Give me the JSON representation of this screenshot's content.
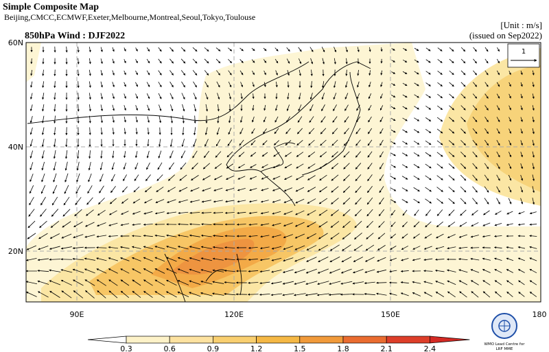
{
  "header": {
    "title": "Simple Composite Map",
    "models": "Beijing,CMCC,ECMWF,Exeter,Melbourne,Montreal,Seoul,Tokyo,Toulouse",
    "map_title": "850hPa Wind : DJF2022",
    "unit": "[Unit : m/s]",
    "issued": "(issued on Sep2022)"
  },
  "map": {
    "lat_labels": [
      "60N",
      "40N",
      "20N"
    ],
    "lon_labels": [
      "90E",
      "120E",
      "150E",
      "180"
    ],
    "reference_vector": "1"
  },
  "colorbar": {
    "labels": [
      "0.3",
      "0.6",
      "0.9",
      "1.2",
      "1.5",
      "1.8",
      "2.1",
      "2.4"
    ]
  },
  "logo": {
    "line1": "WMO Lead Centre for",
    "line2": "LRF MME"
  }
}
